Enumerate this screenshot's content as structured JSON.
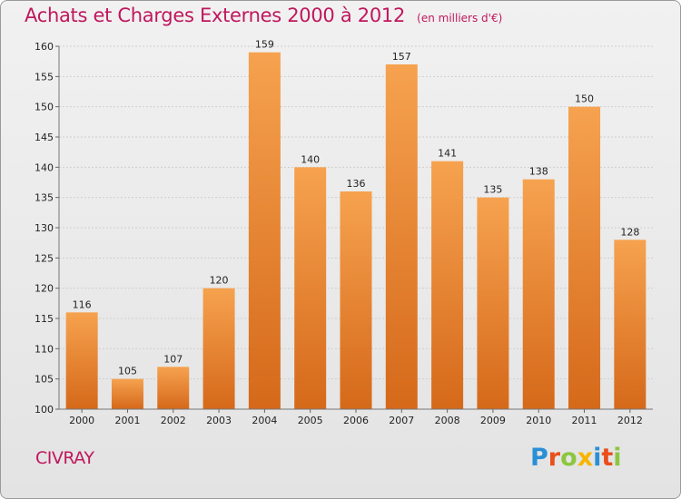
{
  "header": {
    "title": "Achats et Charges Externes 2000 à 2012",
    "unit": "(en milliers d'€)"
  },
  "footer": {
    "city": "CIVRAY",
    "logo_text": "Proxiti"
  },
  "colors": {
    "title": "#c0175d",
    "bar_light": "#f6a24f",
    "bar_dark": "#d96e1c",
    "background": "#ececec"
  },
  "chart_data": {
    "type": "bar",
    "title": "Achats et Charges Externes 2000 à 2012",
    "categories": [
      "2000",
      "2001",
      "2002",
      "2003",
      "2004",
      "2005",
      "2006",
      "2007",
      "2008",
      "2009",
      "2010",
      "2011",
      "2012"
    ],
    "values": [
      116,
      105,
      107,
      120,
      159,
      140,
      136,
      157,
      141,
      135,
      138,
      150,
      128
    ],
    "ylim": [
      100,
      160
    ],
    "yticks": [
      100,
      105,
      110,
      115,
      120,
      125,
      130,
      135,
      140,
      145,
      150,
      155,
      160
    ],
    "grid": true,
    "legend": "none"
  }
}
